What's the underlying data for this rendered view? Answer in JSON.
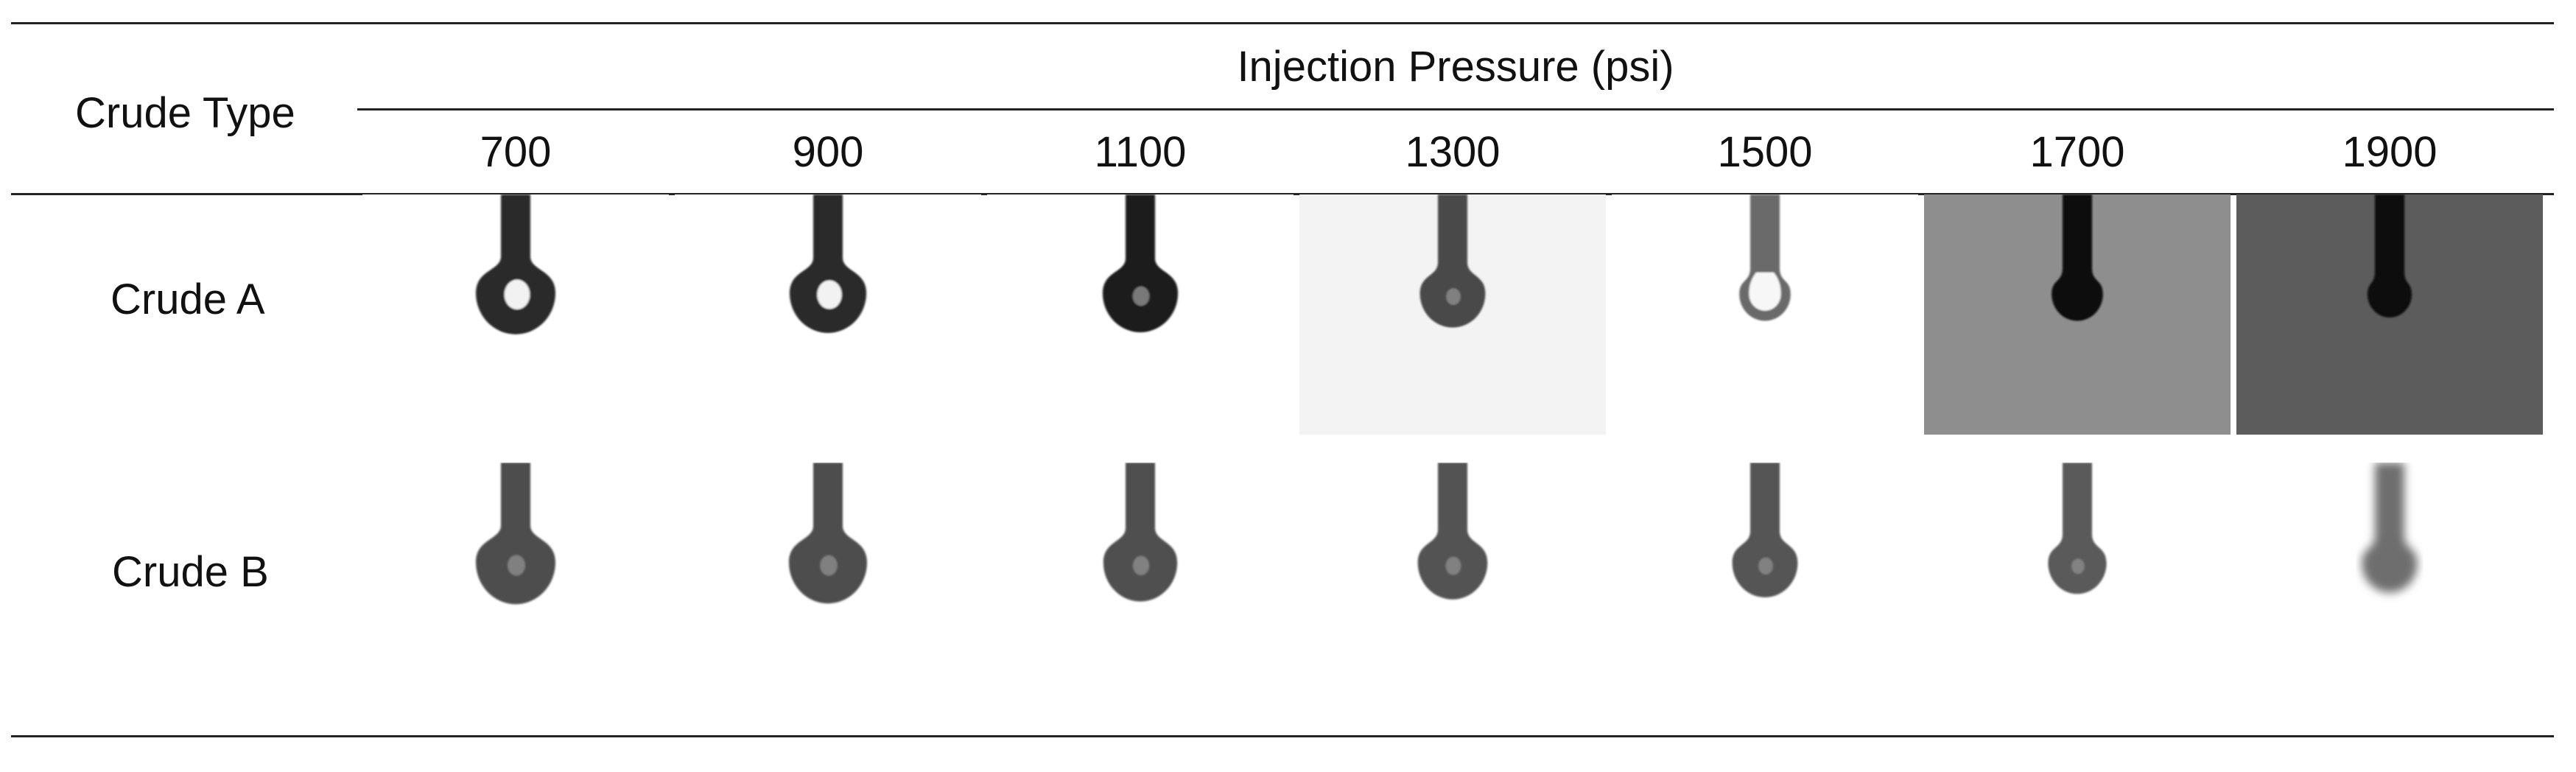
{
  "table": {
    "row_header_label": "Crude Type",
    "column_group_label": "Injection Pressure (psi)",
    "pressures": [
      "700",
      "900",
      "1100",
      "1300",
      "1500",
      "1700",
      "1900"
    ],
    "rows": [
      {
        "label": "Crude A",
        "cells": [
          {
            "background": "#ffffff",
            "drop_color": "#2a2a2a",
            "highlight": "bright",
            "bulb": 1.0
          },
          {
            "background": "#ffffff",
            "drop_color": "#2a2a2a",
            "highlight": "bright",
            "bulb": 0.96
          },
          {
            "background": "#ffffff",
            "drop_color": "#1e1e1e",
            "highlight": "dim",
            "bulb": 0.94
          },
          {
            "background": "#f3f3f3",
            "drop_color": "#4a4a4a",
            "highlight": "dim",
            "bulb": 0.8
          },
          {
            "background": "#ffffff",
            "drop_color": "#6a6a6a",
            "highlight": "hollow",
            "bulb": 0.6
          },
          {
            "background": "#8e8e8e",
            "drop_color": "#101010",
            "highlight": "none",
            "bulb": 0.6
          },
          {
            "background": "#5c5c5c",
            "drop_color": "#0d0d0d",
            "highlight": "none",
            "bulb": 0.5
          }
        ]
      },
      {
        "label": "Crude B",
        "cells": [
          {
            "background": "#ffffff",
            "drop_color": "#4e4e4e",
            "highlight": "dim",
            "bulb": 1.0
          },
          {
            "background": "#ffffff",
            "drop_color": "#4e4e4e",
            "highlight": "dim",
            "bulb": 0.98
          },
          {
            "background": "#ffffff",
            "drop_color": "#505050",
            "highlight": "dim",
            "bulb": 0.92
          },
          {
            "background": "#ffffff",
            "drop_color": "#525252",
            "highlight": "dim",
            "bulb": 0.86
          },
          {
            "background": "#ffffff",
            "drop_color": "#555555",
            "highlight": "dim",
            "bulb": 0.8
          },
          {
            "background": "#ffffff",
            "drop_color": "#5a5a5a",
            "highlight": "dim",
            "bulb": 0.7
          },
          {
            "background": "#ffffff",
            "drop_color": "#6e6e6e",
            "highlight": "blur",
            "bulb": 0.66
          }
        ]
      }
    ]
  }
}
